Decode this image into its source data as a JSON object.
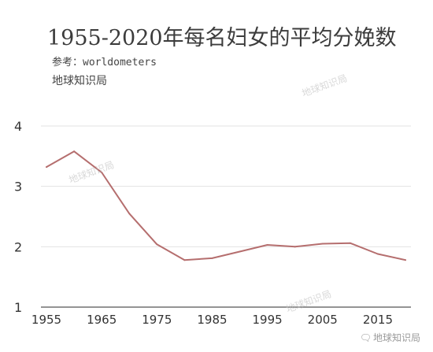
{
  "header": {
    "title": "1955-2020年每名妇女的平均分娩数",
    "source": "参考：worldometers",
    "brand": "地球知识局"
  },
  "watermarks": [
    "地球知识局",
    "地球知识局",
    "地球知识局"
  ],
  "corner_mark": {
    "icon": "wechat-bubble-icon",
    "text": "地球知识局"
  },
  "colors": {
    "line": "#b56e6e",
    "grid": "#e3e3e3",
    "axis": "#555555"
  },
  "chart_data": {
    "type": "line",
    "title": "1955-2020年每名妇女的平均分娩数",
    "xlabel": "",
    "ylabel": "",
    "x": [
      1955,
      1960,
      1965,
      1970,
      1975,
      1980,
      1985,
      1990,
      1995,
      2000,
      2005,
      2010,
      2015,
      2020
    ],
    "series": [
      {
        "values": [
          3.32,
          3.58,
          3.23,
          2.55,
          2.04,
          1.78,
          1.81,
          1.92,
          2.03,
          2.0,
          2.05,
          2.06,
          1.88,
          1.78
        ]
      }
    ],
    "xticks": [
      "1955",
      "1965",
      "1975",
      "1985",
      "1995",
      "2005",
      "2015"
    ],
    "yticks": [
      "1",
      "2",
      "3",
      "4"
    ],
    "xlim": [
      1954,
      2021
    ],
    "ylim": [
      1,
      4
    ],
    "grid": true,
    "legend": "none"
  }
}
